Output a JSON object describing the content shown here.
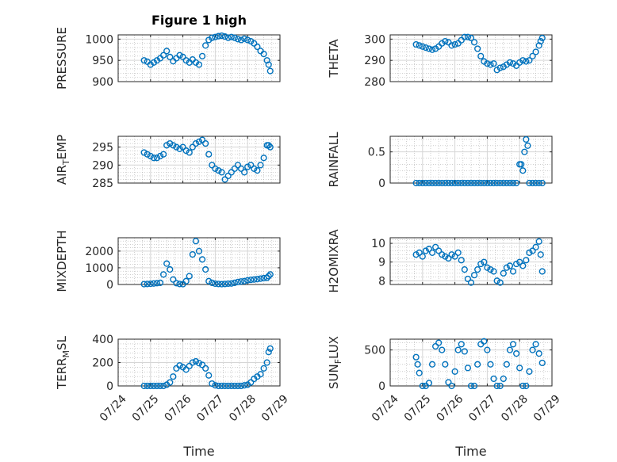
{
  "figure": {
    "title": "Figure 1 high",
    "xlabel": "Time"
  },
  "colors": {
    "marker": "#0072BD",
    "axes": "#262626",
    "grid": "#b0b0b0"
  },
  "chart_data": [
    {
      "type": "scatter",
      "ylabel": "PRESSURE",
      "yticks": [
        "900",
        "950",
        "1000"
      ],
      "ylim": [
        900,
        1010
      ],
      "xticks": [
        "07/24",
        "07/25",
        "07/26",
        "07/27",
        "07/28",
        "07/29"
      ],
      "x": [
        0.8,
        0.9,
        1.0,
        1.1,
        1.2,
        1.3,
        1.4,
        1.5,
        1.6,
        1.7,
        1.8,
        1.9,
        2.0,
        2.1,
        2.2,
        2.3,
        2.4,
        2.5,
        2.6,
        2.7,
        2.8,
        2.9,
        3.0,
        3.1,
        3.2,
        3.3,
        3.4,
        3.5,
        3.6,
        3.7,
        3.8,
        3.9,
        4.0,
        4.1,
        4.2,
        4.3,
        4.4,
        4.5,
        4.6,
        4.65,
        4.7
      ],
      "y": [
        950,
        947,
        940,
        945,
        950,
        955,
        962,
        972,
        958,
        948,
        955,
        962,
        958,
        950,
        945,
        952,
        945,
        940,
        960,
        985,
        998,
        1003,
        1005,
        1007,
        1008,
        1006,
        1003,
        1005,
        1003,
        1000,
        998,
        1001,
        998,
        995,
        990,
        982,
        972,
        965,
        950,
        940,
        925
      ]
    },
    {
      "type": "scatter",
      "ylabel": "THETA",
      "yticks": [
        "280",
        "290",
        "300"
      ],
      "ylim": [
        280,
        302
      ],
      "xticks": [
        "07/24",
        "07/25",
        "07/26",
        "07/27",
        "07/28",
        "07/29"
      ],
      "x": [
        0.8,
        0.9,
        1.0,
        1.1,
        1.2,
        1.3,
        1.4,
        1.5,
        1.6,
        1.7,
        1.8,
        1.9,
        2.0,
        2.1,
        2.2,
        2.3,
        2.4,
        2.5,
        2.6,
        2.7,
        2.8,
        2.9,
        3.0,
        3.1,
        3.2,
        3.3,
        3.4,
        3.5,
        3.6,
        3.7,
        3.8,
        3.9,
        4.0,
        4.1,
        4.2,
        4.3,
        4.4,
        4.5,
        4.6,
        4.65,
        4.7
      ],
      "y": [
        297.5,
        297,
        296.5,
        296,
        295.5,
        295,
        295.5,
        296.5,
        298,
        299,
        298.5,
        297,
        297.5,
        298,
        299.5,
        301,
        301,
        300.5,
        298.5,
        295.5,
        292,
        289.5,
        288.5,
        288,
        288.5,
        285.5,
        286.5,
        287,
        288,
        289,
        288.5,
        287.5,
        289,
        290,
        289.5,
        290,
        292,
        294,
        297,
        299,
        300.5
      ]
    },
    {
      "type": "scatter",
      "ylabel": "AIR_TEMP",
      "yticks": [
        "285",
        "290",
        "295"
      ],
      "ylim": [
        285,
        298
      ],
      "xticks": [
        "07/24",
        "07/25",
        "07/26",
        "07/27",
        "07/28",
        "07/29"
      ],
      "x": [
        0.8,
        0.9,
        1.0,
        1.1,
        1.2,
        1.3,
        1.4,
        1.5,
        1.6,
        1.7,
        1.8,
        1.9,
        2.0,
        2.1,
        2.2,
        2.3,
        2.4,
        2.5,
        2.6,
        2.7,
        2.8,
        2.9,
        3.0,
        3.1,
        3.2,
        3.3,
        3.4,
        3.5,
        3.6,
        3.7,
        3.8,
        3.9,
        4.0,
        4.1,
        4.2,
        4.3,
        4.4,
        4.5,
        4.6,
        4.65,
        4.7
      ],
      "y": [
        293.5,
        293,
        292.5,
        292,
        292,
        292.5,
        293,
        295.5,
        296,
        295.5,
        295,
        294.5,
        295,
        294,
        293.5,
        295,
        296,
        296.5,
        297,
        296,
        293,
        290,
        289,
        288.5,
        288,
        286,
        287,
        288,
        289,
        290,
        289,
        288,
        289.5,
        290,
        289,
        288.5,
        290,
        292,
        295.5,
        295.5,
        295
      ]
    },
    {
      "type": "scatter",
      "ylabel": "RAINFALL",
      "yticks": [
        "0",
        "0.5"
      ],
      "ylim": [
        0,
        0.75
      ],
      "xticks": [
        "07/24",
        "07/25",
        "07/26",
        "07/27",
        "07/28",
        "07/29"
      ],
      "x": [
        0.8,
        0.9,
        1.0,
        1.1,
        1.2,
        1.3,
        1.4,
        1.5,
        1.6,
        1.7,
        1.8,
        1.9,
        2.0,
        2.1,
        2.2,
        2.3,
        2.4,
        2.5,
        2.6,
        2.7,
        2.8,
        2.9,
        3.0,
        3.1,
        3.2,
        3.3,
        3.4,
        3.5,
        3.6,
        3.7,
        3.8,
        3.9,
        4.0,
        4.05,
        4.1,
        4.15,
        4.2,
        4.25,
        4.3,
        4.4,
        4.5,
        4.6,
        4.7
      ],
      "y": [
        0,
        0,
        0,
        0,
        0,
        0,
        0,
        0,
        0,
        0,
        0,
        0,
        0,
        0,
        0,
        0,
        0,
        0,
        0,
        0,
        0,
        0,
        0,
        0,
        0,
        0,
        0,
        0,
        0,
        0,
        0,
        0,
        0.3,
        0.3,
        0.2,
        0.5,
        0.7,
        0.6,
        0,
        0,
        0,
        0,
        0
      ]
    },
    {
      "type": "scatter",
      "ylabel": "MIXDEPTH",
      "yticks": [
        "0",
        "1000",
        "2000"
      ],
      "ylim": [
        0,
        2800
      ],
      "xticks": [
        "07/24",
        "07/25",
        "07/26",
        "07/27",
        "07/28",
        "07/29"
      ],
      "x": [
        0.8,
        0.9,
        1.0,
        1.1,
        1.2,
        1.3,
        1.4,
        1.5,
        1.6,
        1.7,
        1.8,
        1.9,
        2.0,
        2.1,
        2.2,
        2.3,
        2.4,
        2.5,
        2.6,
        2.7,
        2.8,
        2.9,
        3.0,
        3.1,
        3.2,
        3.3,
        3.4,
        3.5,
        3.6,
        3.7,
        3.8,
        3.9,
        4.0,
        4.1,
        4.2,
        4.3,
        4.4,
        4.5,
        4.6,
        4.65,
        4.7
      ],
      "y": [
        20,
        30,
        40,
        60,
        80,
        100,
        600,
        1250,
        900,
        300,
        80,
        30,
        20,
        200,
        500,
        1800,
        2600,
        2000,
        1500,
        900,
        200,
        100,
        50,
        30,
        20,
        30,
        50,
        60,
        100,
        150,
        180,
        200,
        250,
        280,
        300,
        320,
        350,
        380,
        400,
        500,
        600
      ]
    },
    {
      "type": "scatter",
      "ylabel": "H2OMIXRA",
      "yticks": [
        "8",
        "9",
        "10"
      ],
      "ylim": [
        7.8,
        10.3
      ],
      "xticks": [
        "07/24",
        "07/25",
        "07/26",
        "07/27",
        "07/28",
        "07/29"
      ],
      "x": [
        0.8,
        0.9,
        1.0,
        1.1,
        1.2,
        1.3,
        1.4,
        1.5,
        1.6,
        1.7,
        1.8,
        1.9,
        2.0,
        2.1,
        2.2,
        2.3,
        2.4,
        2.5,
        2.6,
        2.7,
        2.8,
        2.9,
        3.0,
        3.1,
        3.2,
        3.3,
        3.4,
        3.5,
        3.6,
        3.7,
        3.8,
        3.9,
        4.0,
        4.1,
        4.2,
        4.3,
        4.4,
        4.5,
        4.6,
        4.65,
        4.7
      ],
      "y": [
        9.4,
        9.5,
        9.3,
        9.6,
        9.7,
        9.5,
        9.8,
        9.6,
        9.4,
        9.3,
        9.2,
        9.4,
        9.3,
        9.5,
        9.1,
        8.6,
        8.1,
        7.9,
        8.3,
        8.6,
        8.9,
        9.0,
        8.7,
        8.6,
        8.5,
        8.0,
        7.9,
        8.4,
        8.7,
        8.8,
        8.5,
        8.9,
        9.0,
        8.8,
        9.1,
        9.5,
        9.6,
        9.8,
        10.1,
        9.4,
        8.5
      ]
    },
    {
      "type": "scatter",
      "ylabel": "TERR_MSL",
      "yticks": [
        "0",
        "200",
        "400"
      ],
      "ylim": [
        0,
        400
      ],
      "xticks": [
        "07/24",
        "07/25",
        "07/26",
        "07/27",
        "07/28",
        "07/29"
      ],
      "x": [
        0.8,
        0.9,
        1.0,
        1.1,
        1.2,
        1.3,
        1.4,
        1.5,
        1.6,
        1.7,
        1.8,
        1.9,
        2.0,
        2.1,
        2.2,
        2.3,
        2.4,
        2.5,
        2.6,
        2.7,
        2.8,
        2.9,
        3.0,
        3.1,
        3.2,
        3.3,
        3.4,
        3.5,
        3.6,
        3.7,
        3.8,
        3.9,
        4.0,
        4.1,
        4.2,
        4.3,
        4.4,
        4.5,
        4.6,
        4.65,
        4.7
      ],
      "y": [
        0,
        0,
        0,
        0,
        0,
        0,
        0,
        10,
        30,
        80,
        150,
        175,
        160,
        140,
        170,
        200,
        210,
        195,
        180,
        150,
        90,
        20,
        5,
        0,
        0,
        0,
        0,
        0,
        0,
        0,
        0,
        5,
        10,
        30,
        60,
        80,
        100,
        150,
        200,
        290,
        320
      ]
    },
    {
      "type": "scatter",
      "ylabel": "SUN_FLUX",
      "yticks": [
        "0",
        "500"
      ],
      "ylim": [
        0,
        650
      ],
      "xticks": [
        "07/24",
        "07/25",
        "07/26",
        "07/27",
        "07/28",
        "07/29"
      ],
      "x": [
        0.8,
        0.85,
        0.9,
        1.0,
        1.1,
        1.2,
        1.3,
        1.4,
        1.5,
        1.6,
        1.7,
        1.8,
        1.9,
        2.0,
        2.1,
        2.2,
        2.3,
        2.4,
        2.5,
        2.6,
        2.7,
        2.8,
        2.9,
        3.0,
        3.1,
        3.2,
        3.3,
        3.4,
        3.5,
        3.6,
        3.7,
        3.8,
        3.9,
        4.0,
        4.1,
        4.2,
        4.3,
        4.4,
        4.5,
        4.6,
        4.7
      ],
      "y": [
        400,
        300,
        180,
        0,
        0,
        40,
        300,
        550,
        600,
        500,
        300,
        50,
        0,
        200,
        500,
        580,
        480,
        250,
        0,
        0,
        300,
        580,
        620,
        500,
        300,
        100,
        0,
        0,
        100,
        300,
        500,
        580,
        450,
        250,
        0,
        0,
        200,
        500,
        580,
        450,
        320
      ]
    }
  ]
}
